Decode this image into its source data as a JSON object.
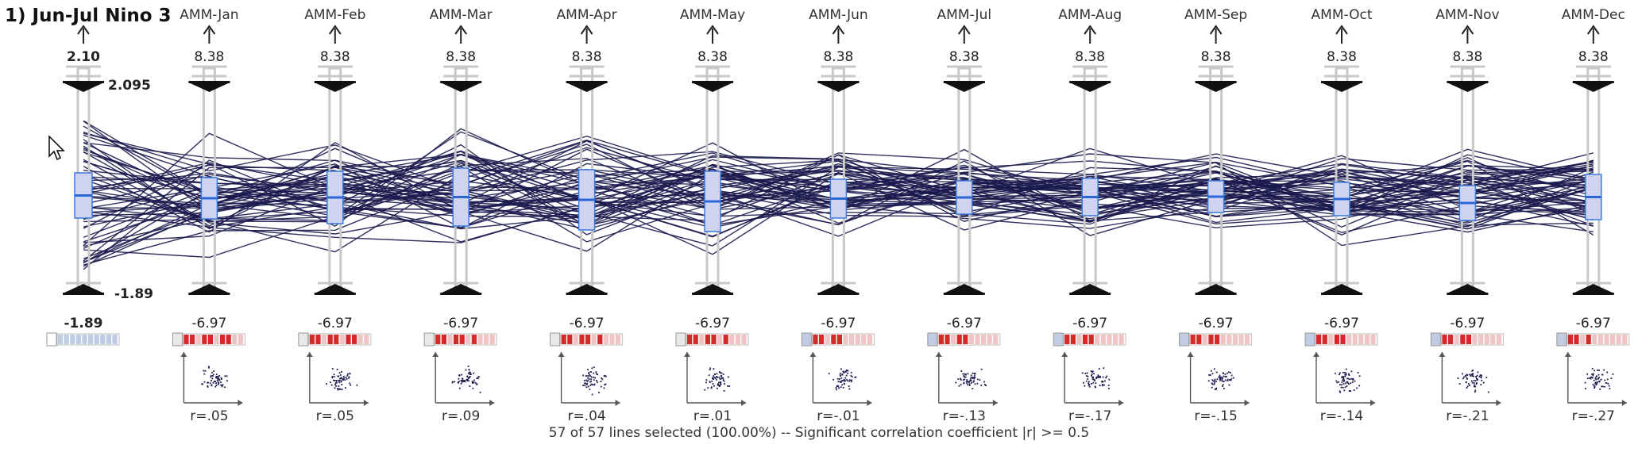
{
  "panel": {
    "title": "1) Jun-Jul Nino 3",
    "status": "57 of 57 lines selected (100.00%)  --  Significant correlation coefficient  |r| >= 0.5"
  },
  "target_axis": {
    "top_value": "2.10",
    "bottom_value": "-1.89",
    "range_max_label": "2.095",
    "range_min_label": "-1.89"
  },
  "predictor_axes": [
    {
      "label": "AMM-Jan",
      "top_value": "8.38",
      "bottom_value": "-6.97",
      "r": "r=.05"
    },
    {
      "label": "AMM-Feb",
      "top_value": "8.38",
      "bottom_value": "-6.97",
      "r": "r=.05"
    },
    {
      "label": "AMM-Mar",
      "top_value": "8.38",
      "bottom_value": "-6.97",
      "r": "r=.09"
    },
    {
      "label": "AMM-Apr",
      "top_value": "8.38",
      "bottom_value": "-6.97",
      "r": "r=.04"
    },
    {
      "label": "AMM-May",
      "top_value": "8.38",
      "bottom_value": "-6.97",
      "r": "r=.01"
    },
    {
      "label": "AMM-Jun",
      "top_value": "8.38",
      "bottom_value": "-6.97",
      "r": "r=-.01"
    },
    {
      "label": "AMM-Jul",
      "top_value": "8.38",
      "bottom_value": "-6.97",
      "r": "r=-.13"
    },
    {
      "label": "AMM-Aug",
      "top_value": "8.38",
      "bottom_value": "-6.97",
      "r": "r=-.17"
    },
    {
      "label": "AMM-Sep",
      "top_value": "8.38",
      "bottom_value": "-6.97",
      "r": "r=-.15"
    },
    {
      "label": "AMM-Oct",
      "top_value": "8.38",
      "bottom_value": "-6.97",
      "r": "r=-.14"
    },
    {
      "label": "AMM-Nov",
      "top_value": "8.38",
      "bottom_value": "-6.97",
      "r": "r=-.21"
    },
    {
      "label": "AMM-Dec",
      "top_value": "8.38",
      "bottom_value": "-6.97",
      "r": "r=-.27"
    }
  ],
  "colors": {
    "line": "#1a1a4e",
    "axis": "#c8c8c8",
    "box_fill": "#cfd3f0",
    "box_stroke": "#3a7bdc",
    "median": "#2a66d6",
    "handle": "#111111",
    "legend_red": "#d42a2a",
    "legend_pink": "#f0c4c4",
    "legend_blue": "#c0cce4"
  },
  "icons": {
    "mouse_cursor": "arrow-cursor-icon",
    "axis_arrow": "up-arrow-icon"
  },
  "line_count": 57
}
